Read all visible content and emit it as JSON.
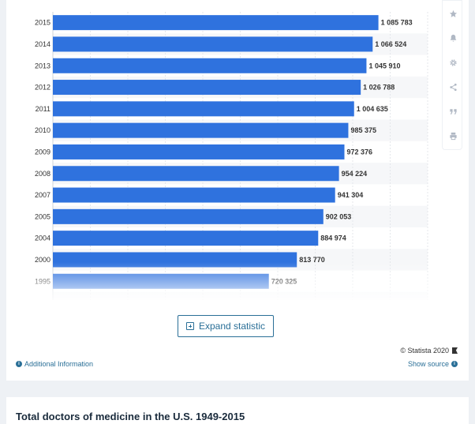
{
  "chart_data": {
    "type": "bar",
    "orientation": "horizontal",
    "categories": [
      "2015",
      "2014",
      "2013",
      "2012",
      "2011",
      "2010",
      "2009",
      "2008",
      "2007",
      "2005",
      "2004",
      "2000",
      "1995"
    ],
    "values": [
      1085783,
      1066524,
      1045910,
      1026788,
      1004635,
      985375,
      972376,
      954224,
      941304,
      902053,
      884974,
      813770,
      720325
    ],
    "value_labels": [
      "1 085 783",
      "1 066 524",
      "1 045 910",
      "1 026 788",
      "1 004 635",
      "985 375",
      "972 376",
      "954 224",
      "941 304",
      "902 053",
      "884 974",
      "813 770",
      "720 325"
    ],
    "xlim": [
      0,
      1250000
    ],
    "bar_color": "#2f72de",
    "grid": true
  },
  "tools": [
    "star-icon",
    "bell-icon",
    "gear-icon",
    "share-icon",
    "quote-icon",
    "print-icon"
  ],
  "footer": {
    "expand_label": "Expand statistic",
    "copyright": "© Statista 2020",
    "additional_info": "Additional Information",
    "show_source": "Show source"
  },
  "next_card": {
    "title": "Total doctors of medicine in the U.S. 1949-2015"
  }
}
